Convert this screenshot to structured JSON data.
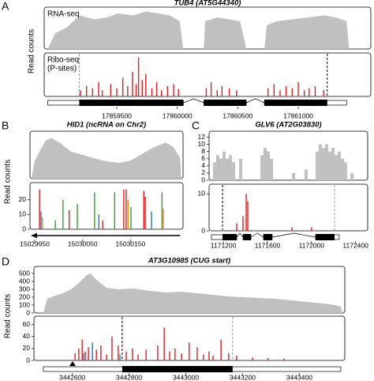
{
  "chart_data": [
    {
      "type": "genome-track",
      "panel": "A",
      "title": "TUB4 (AT5G44340)",
      "y_label": "Read counts",
      "xlim": [
        17858900,
        17861600
      ],
      "xticks": [
        17859500,
        17860000,
        17860500,
        17861000
      ],
      "tracks": [
        {
          "kind": "area",
          "label_lines": [
            "RNA-seq"
          ],
          "color": "#c0c0c0",
          "ylim": [
            0,
            100
          ],
          "x": [
            17858930,
            17858990,
            17859090,
            17859190,
            17859250,
            17859320,
            17859420,
            17859510,
            17859640,
            17859740,
            17859840,
            17859940,
            17860020,
            17860050,
            17860220,
            17860230,
            17860330,
            17860430,
            17860520,
            17860570,
            17860720,
            17860740,
            17860820,
            17860950,
            17861080,
            17861210,
            17861310,
            17861400,
            17861420
          ],
          "values": [
            0,
            40,
            55,
            85,
            80,
            75,
            80,
            90,
            85,
            95,
            90,
            85,
            70,
            0,
            0,
            70,
            80,
            75,
            70,
            0,
            0,
            60,
            70,
            75,
            80,
            85,
            80,
            70,
            0
          ]
        },
        {
          "kind": "bars",
          "label_lines": [
            "Ribo-seq",
            "(P-sites)"
          ],
          "ylim": [
            0,
            100
          ],
          "series": [
            {
              "color": "#e31a1c",
              "x": [
                17859200,
                17859250,
                17859300,
                17859350,
                17859380,
                17859450,
                17859500,
                17859550,
                17859590,
                17859630,
                17859660,
                17859680,
                17859710,
                17859740,
                17859790,
                17859830,
                17859870,
                17859920,
                17859970,
                17860010,
                17860240,
                17860280,
                17860330,
                17860370,
                17860430,
                17860490,
                17860750,
                17860800,
                17860850,
                17860900,
                17860950,
                17861000,
                17861050,
                17861090,
                17861140,
                17861210
              ],
              "values": [
                15,
                25,
                20,
                35,
                15,
                30,
                20,
                45,
                25,
                60,
                30,
                95,
                40,
                55,
                20,
                35,
                15,
                25,
                30,
                18,
                20,
                35,
                15,
                25,
                20,
                15,
                20,
                30,
                15,
                25,
                20,
                35,
                15,
                20,
                25,
                15
              ]
            }
          ],
          "lines": [
            {
              "x": 17859190,
              "color": "#999999"
            },
            {
              "x": 17861240,
              "color": "#000000"
            }
          ]
        }
      ],
      "gene_model": {
        "exons": [
          [
            17858930,
            17860050
          ],
          [
            17860220,
            17860570
          ],
          [
            17860720,
            17861400
          ]
        ],
        "cds": [
          17859190,
          17861240
        ]
      }
    },
    {
      "type": "genome-track",
      "panel": "B",
      "title": "HID1 (ncRNA on Chr2)",
      "y_label": "Read counts",
      "xlim": [
        15029940,
        15030260
      ],
      "xticks": [
        15029950,
        15030050,
        15030150
      ],
      "tracks": [
        {
          "kind": "area",
          "color": "#c0c0c0",
          "ylim": [
            0,
            100
          ],
          "x": [
            15029943,
            15029950,
            15029960,
            15029973,
            15029985,
            15030001,
            15030026,
            15030059,
            15030092,
            15030125,
            15030150,
            15030174,
            15030199,
            15030224,
            15030240,
            15030254,
            15030256
          ],
          "values": [
            0,
            40,
            60,
            85,
            90,
            80,
            60,
            50,
            40,
            35,
            40,
            55,
            70,
            80,
            70,
            45,
            0
          ]
        },
        {
          "kind": "bars",
          "ylim": [
            0,
            30
          ],
          "yticks": [
            0,
            10,
            20
          ],
          "series": [
            {
              "color": "#e31a1c",
              "x": [
                15029960,
                15030022,
                15030092,
                15030136,
                15030141,
                15030178,
                15030181
              ],
              "values": [
                27,
                13,
                6,
                27,
                27,
                26,
                22
              ]
            },
            {
              "color": "#33a02c",
              "x": [
                15029993,
                15030009,
                15030039,
                15030075,
                15030117,
                15030151,
                15030216
              ],
              "values": [
                6,
                20,
                17,
                25,
                25,
                15,
                25
              ]
            },
            {
              "color": "#1f78b4",
              "x": [
                15029963,
                15030084,
                15030194
              ],
              "values": [
                12,
                10,
                12
              ]
            },
            {
              "color": "#ff7f00",
              "x": [
                15029966,
                15030145,
                15030219
              ],
              "values": [
                8,
                20,
                14
              ]
            }
          ]
        }
      ],
      "gene_model": {
        "arrow": [
          15030254,
          15029943
        ]
      }
    },
    {
      "type": "genome-track",
      "panel": "C",
      "title": "GLV6 (AT2G03830)",
      "xlim": [
        1171070,
        1172510
      ],
      "xticks": [
        1171200,
        1171600,
        1172000,
        1172400
      ],
      "tracks": [
        {
          "kind": "blocks",
          "color": "#c0c0c0",
          "ylim": [
            0,
            13
          ],
          "yticks": [
            0,
            2,
            4,
            6,
            8,
            10,
            12
          ],
          "x": [
            1171120,
            1171149,
            1171177,
            1171206,
            1171235,
            1171263,
            1171292,
            1171357,
            1171550,
            1171579,
            1171607,
            1171636,
            1171837,
            1171951,
            1172051,
            1172080,
            1172109,
            1172137,
            1172166,
            1172195,
            1172223,
            1172252,
            1172281,
            1172309,
            1172367
          ],
          "values": [
            5,
            7,
            6,
            8,
            6,
            7,
            5,
            6,
            7,
            9,
            8,
            6,
            2,
            3,
            8,
            10,
            9,
            10,
            8,
            9,
            7,
            8,
            6,
            5,
            2
          ]
        },
        {
          "kind": "bars",
          "ylim": [
            0,
            12
          ],
          "yticks": [
            0,
            10
          ],
          "series": [
            {
              "color": "#e31a1c",
              "x": [
                1171321,
                1171378,
                1171407,
                1171421,
                1171822,
                1172001
              ],
              "values": [
                2,
                4,
                10,
                8,
                1,
                1
              ]
            }
          ],
          "lines": [
            {
              "x": 1171192,
              "color": "#000000"
            },
            {
              "x": 1172209,
              "color": "#999999"
            }
          ]
        }
      ],
      "gene_model": {
        "exons": [
          [
            1171091,
            1171321
          ],
          [
            1171378,
            1171450
          ],
          [
            1171564,
            1171643
          ],
          [
            1172037,
            1172252
          ]
        ],
        "cds": [
          1171192,
          1172209
        ]
      }
    },
    {
      "type": "genome-track",
      "panel": "D",
      "title": "AT3G10985 (CUG start)",
      "y_label": "Read counts",
      "xlim": [
        3442465,
        3443560
      ],
      "xticks": [
        3442600,
        3442800,
        3443000,
        3443200,
        3443400
      ],
      "tracks": [
        {
          "kind": "area",
          "color": "#c0c0c0",
          "ylim": [
            0,
            560
          ],
          "yticks": [
            0,
            100,
            200,
            300,
            400,
            500
          ],
          "x": [
            3442498,
            3442512,
            3442540,
            3442568,
            3442596,
            3442623,
            3442651,
            3442665,
            3442685,
            3442721,
            3442762,
            3442818,
            3442874,
            3442929,
            3442985,
            3443040,
            3443096,
            3443151,
            3443207,
            3443263,
            3443318,
            3443374,
            3443429,
            3443485,
            3443527,
            3443546,
            3443552
          ],
          "values": [
            0,
            180,
            220,
            250,
            300,
            380,
            480,
            500,
            420,
            320,
            300,
            310,
            280,
            260,
            270,
            250,
            230,
            210,
            200,
            190,
            180,
            160,
            140,
            120,
            100,
            80,
            0
          ]
        },
        {
          "kind": "bars",
          "ylim": [
            0,
            70
          ],
          "yticks": [
            0,
            20,
            40,
            60
          ],
          "series": [
            {
              "color": "#e31a1c",
              "x": [
                3442610,
                3442623,
                3442635,
                3442646,
                3442657,
                3442685,
                3442701,
                3442721,
                3442740,
                3442762,
                3442790,
                3442812,
                3442832,
                3442860,
                3442901,
                3442924,
                3442943,
                3442962,
                3442985,
                3443012,
                3443040,
                3443062,
                3443082,
                3443096,
                3443124,
                3443151,
                3443179,
                3443235,
                3443290,
                3443346
              ],
              "values": [
                12,
                20,
                35,
                15,
                22,
                18,
                25,
                10,
                40,
                25,
                15,
                20,
                10,
                18,
                25,
                55,
                15,
                20,
                12,
                30,
                22,
                10,
                15,
                8,
                35,
                12,
                8,
                5,
                4,
                3
              ]
            },
            {
              "color": "#1f78b4",
              "x": [
                3442640,
                3442671,
                3442768
              ],
              "values": [
                12,
                30,
                10
              ]
            }
          ],
          "lines": [
            {
              "x": 3442776,
              "color": "#000000"
            },
            {
              "x": 3443165,
              "color": "#999999"
            }
          ]
        }
      ],
      "gene_model": {
        "exons": [
          [
            3442498,
            3443546
          ]
        ],
        "cds": [
          3442776,
          3443165
        ],
        "cug_start": 3442601
      }
    }
  ]
}
